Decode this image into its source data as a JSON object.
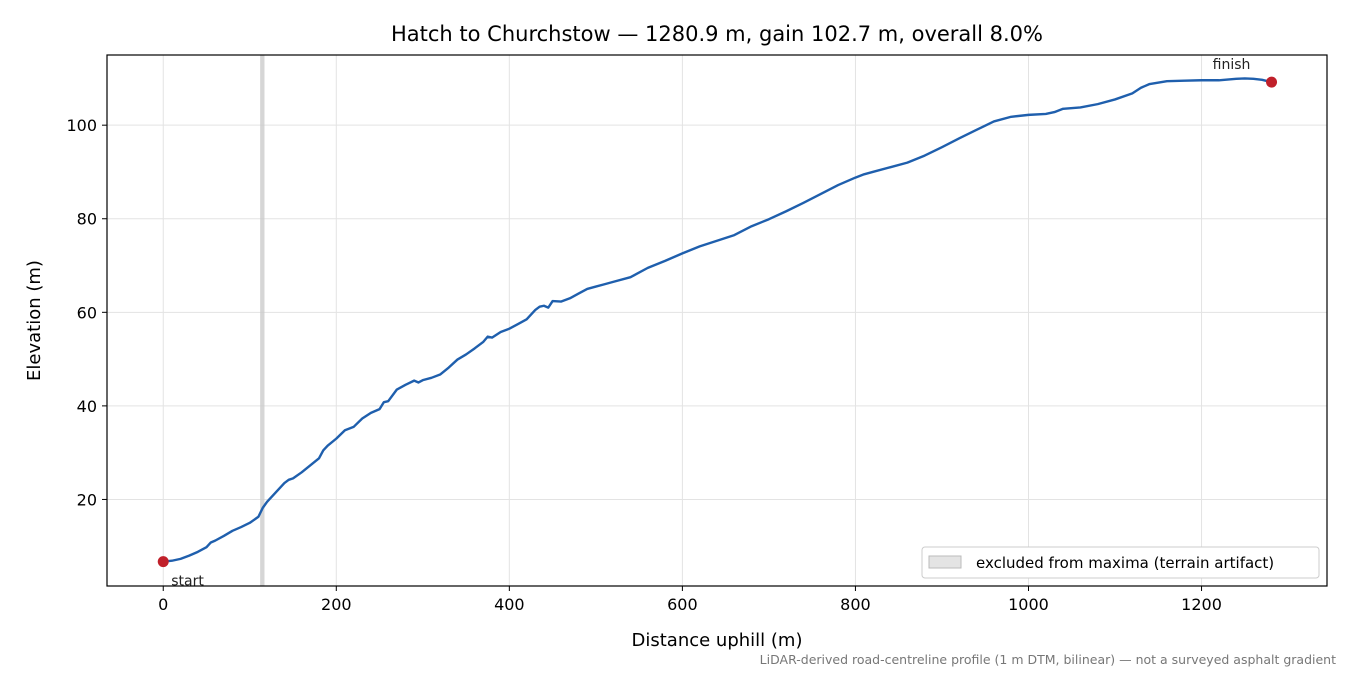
{
  "chart_data": {
    "type": "line",
    "title": "Hatch to Churchstow — 1280.9 m, gain 102.7 m, overall 8.0%",
    "xlabel": "Distance uphill (m)",
    "ylabel": "Elevation (m)",
    "xlim": [
      -65,
      1345
    ],
    "ylim": [
      1.5,
      115
    ],
    "xticks": [
      0,
      200,
      400,
      600,
      800,
      1000,
      1200
    ],
    "yticks": [
      20,
      40,
      60,
      80,
      100
    ],
    "grid": true,
    "legend_placement": "lower-right",
    "footnote": "LiDAR-derived road-centreline profile (1 m DTM, bilinear) — not a surveyed asphalt gradient",
    "colors": {
      "line": "#1f5fad",
      "endpoints": "#c0202a",
      "excluded_band": "#c8c8c8"
    },
    "excluded_band": {
      "x_start": 112,
      "x_end": 117,
      "label": "excluded from maxima (terrain artifact)"
    },
    "start_point": {
      "x": 0,
      "y": 6.7,
      "label": "start"
    },
    "finish_point": {
      "x": 1280.9,
      "y": 109.2,
      "label": "finish"
    },
    "series": [
      {
        "x": [
          0,
          10,
          20,
          30,
          40,
          50,
          55,
          60,
          70,
          80,
          90,
          100,
          110,
          115,
          120,
          130,
          140,
          145,
          150,
          160,
          170,
          180,
          185,
          190,
          200,
          210,
          220,
          230,
          240,
          250,
          255,
          260,
          270,
          280,
          290,
          295,
          300,
          310,
          320,
          330,
          340,
          350,
          360,
          370,
          375,
          380,
          390,
          400,
          410,
          420,
          430,
          435,
          440,
          445,
          450,
          460,
          470,
          480,
          490,
          500,
          510,
          520,
          540,
          560,
          580,
          600,
          620,
          640,
          660,
          680,
          700,
          720,
          740,
          760,
          780,
          800,
          810,
          820,
          840,
          860,
          880,
          900,
          920,
          940,
          960,
          980,
          1000,
          1020,
          1030,
          1040,
          1060,
          1080,
          1100,
          1120,
          1130,
          1140,
          1160,
          1180,
          1200,
          1220,
          1240,
          1250,
          1260,
          1270,
          1280.9
        ],
        "values": [
          6.7,
          6.9,
          7.3,
          8.0,
          8.8,
          9.8,
          10.8,
          11.2,
          12.2,
          13.3,
          14.1,
          15.0,
          16.3,
          18.2,
          19.5,
          21.5,
          23.5,
          24.2,
          24.5,
          25.8,
          27.3,
          28.8,
          30.5,
          31.5,
          33.0,
          34.8,
          35.5,
          37.3,
          38.5,
          39.3,
          40.8,
          41.0,
          43.5,
          44.5,
          45.4,
          45.0,
          45.5,
          46.0,
          46.7,
          48.2,
          49.9,
          51.0,
          52.3,
          53.7,
          54.8,
          54.6,
          55.8,
          56.5,
          57.5,
          58.5,
          60.5,
          61.2,
          61.4,
          61.0,
          62.4,
          62.3,
          63.0,
          64.0,
          65.0,
          65.5,
          66.0,
          66.5,
          67.5,
          69.5,
          71.0,
          72.6,
          74.1,
          75.3,
          76.5,
          78.4,
          79.9,
          81.6,
          83.4,
          85.3,
          87.2,
          88.8,
          89.5,
          90.0,
          91.0,
          92.0,
          93.5,
          95.3,
          97.2,
          99.0,
          100.8,
          101.8,
          102.2,
          102.4,
          102.8,
          103.5,
          103.8,
          104.5,
          105.5,
          106.8,
          108.0,
          108.8,
          109.4,
          109.5,
          109.6,
          109.6,
          109.9,
          110.0,
          109.9,
          109.7,
          109.2
        ]
      }
    ]
  }
}
